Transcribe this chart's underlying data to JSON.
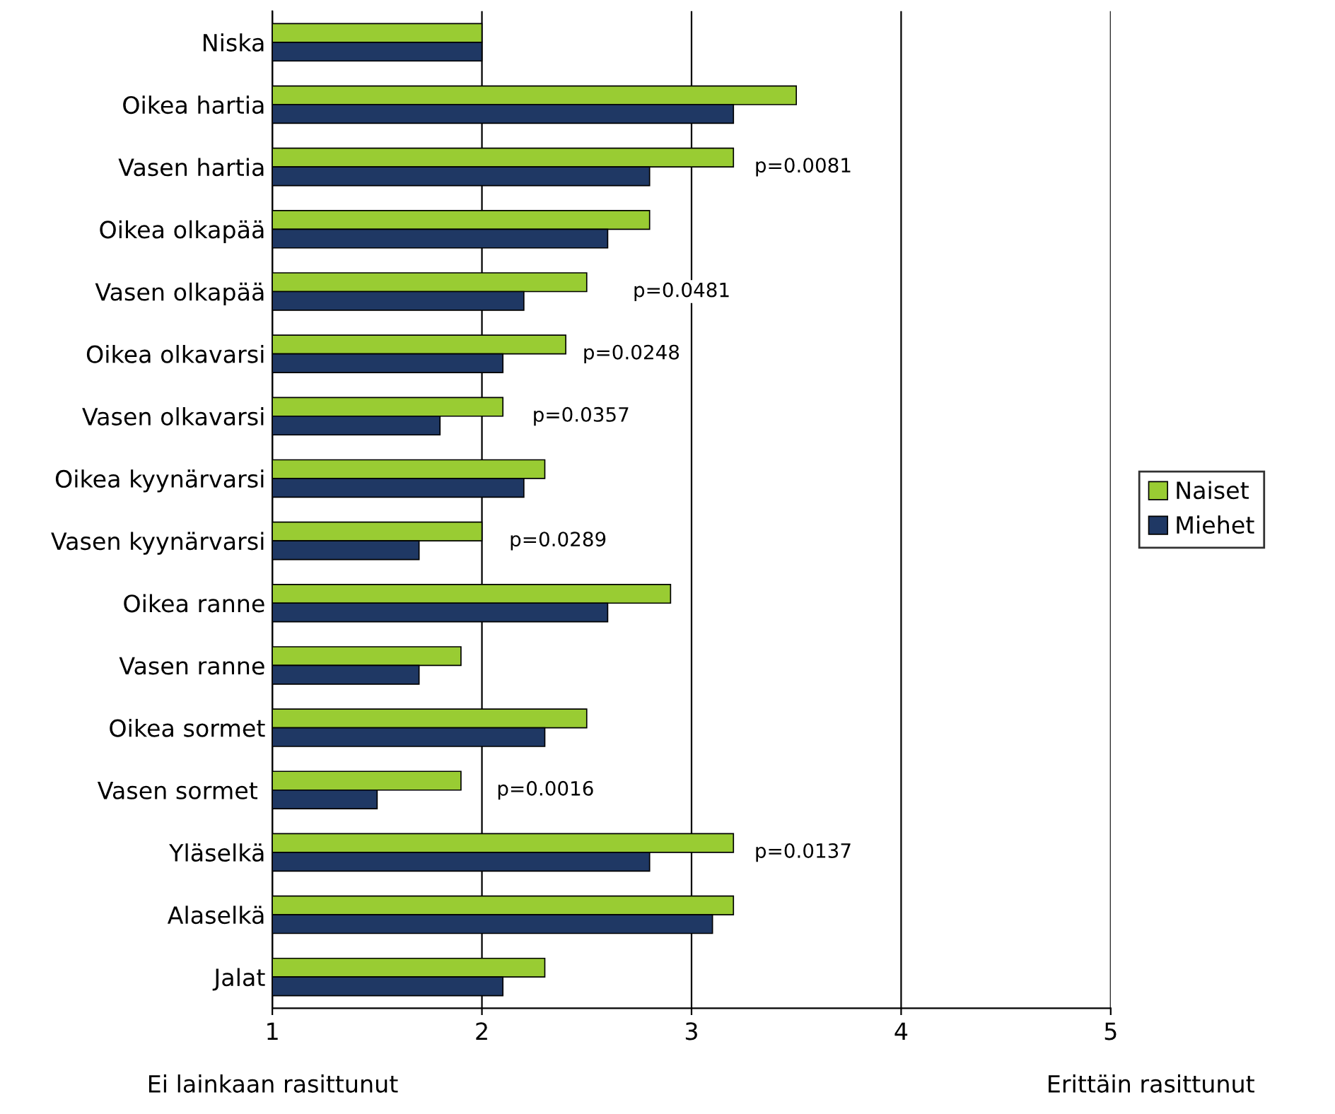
{
  "chart_data": {
    "type": "bar",
    "orientation": "horizontal",
    "categories": [
      "Niska",
      "Oikea hartia",
      "Vasen hartia",
      "Oikea olkapää",
      "Vasen olkapää",
      "Oikea olkavarsi",
      "Vasen olkavarsi",
      "Oikea kyynärvarsi",
      "Vasen kyynärvarsi",
      "Oikea ranne",
      "Vasen ranne",
      "Oikea sormet",
      "Vasen sormet ",
      "Yläselkä",
      "Alaselkä",
      "Jalat"
    ],
    "series": [
      {
        "name": "Naiset",
        "color": "#99cc33",
        "values": [
          2.0,
          3.5,
          3.2,
          2.8,
          2.5,
          2.4,
          2.1,
          2.3,
          2.0,
          2.9,
          1.9,
          2.5,
          1.9,
          3.2,
          3.2,
          2.3
        ]
      },
      {
        "name": "Miehet",
        "color": "#1f3864",
        "values": [
          2.0,
          3.2,
          2.8,
          2.6,
          2.2,
          2.1,
          1.8,
          2.2,
          1.7,
          2.6,
          1.7,
          2.3,
          1.5,
          2.8,
          3.1,
          2.1
        ]
      }
    ],
    "xlim": [
      1,
      5
    ],
    "xticks": [
      1,
      2,
      3,
      4,
      5
    ],
    "grid": "x",
    "legend": "right",
    "annotations": [
      "p=0.0081",
      "p=0.0481",
      "p=0.0248",
      "p=0.0357",
      "p=0.0289",
      "p=0.0016",
      "p=0.0137",
      "Ei lainkaan rasittunut",
      "Erittäin rasittunut"
    ]
  }
}
